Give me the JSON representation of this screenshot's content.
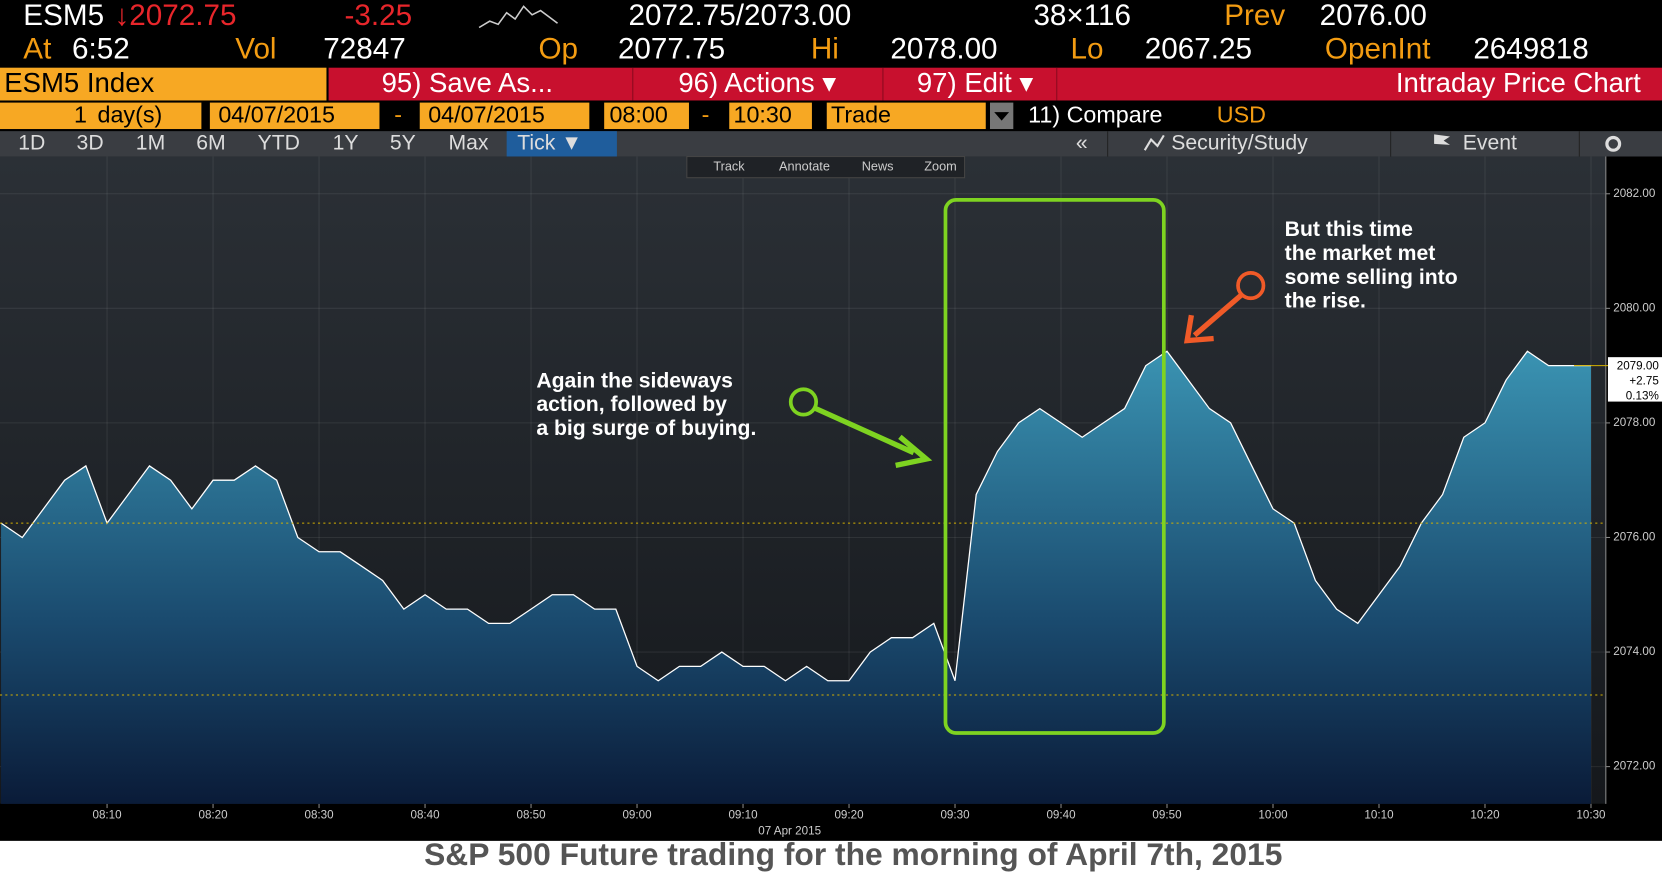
{
  "header": {
    "ticker": "ESM5",
    "last": "↓2072.75",
    "change": "-3.25",
    "bid_ask": "2072.75/2073.00",
    "size": "38×116",
    "prev_label": "Prev",
    "prev": "2076.00",
    "at_label": "At",
    "time": "6:52",
    "vol_label": "Vol",
    "vol": "72847",
    "op_label": "Op",
    "op": "2077.75",
    "hi_label": "Hi",
    "hi": "2078.00",
    "lo_label": "Lo",
    "lo": "2067.25",
    "oi_label": "OpenInt",
    "oi": "2649818"
  },
  "menu": {
    "security": "ESM5 Index",
    "save": "95) Save As...",
    "actions": "96) Actions ▾",
    "edit": "97) Edit ▾",
    "title": "Intraday Price Chart"
  },
  "range": {
    "count": "1",
    "unit": "day(s)",
    "start_date": "04/07/2015",
    "dash1": "-",
    "end_date": "04/07/2015",
    "start_time": "08:00",
    "dash2": "-",
    "end_time": "10:30",
    "source": "Trade",
    "compare": "11) Compare",
    "currency": "USD"
  },
  "tabs": [
    "1D",
    "3D",
    "1M",
    "6M",
    "YTD",
    "1Y",
    "5Y",
    "Max",
    "Tick ▼"
  ],
  "tools": [
    "«",
    "Security/Study",
    "Event"
  ],
  "chart_toolbar": [
    "Track",
    "Annotate",
    "News",
    "Zoom"
  ],
  "chart_data": {
    "type": "area",
    "color": "#2e7d9c",
    "line_color": "#ffffff",
    "x": [
      "08:00",
      "08:02",
      "08:04",
      "08:06",
      "08:08",
      "08:10",
      "08:12",
      "08:14",
      "08:16",
      "08:18",
      "08:20",
      "08:22",
      "08:24",
      "08:26",
      "08:28",
      "08:30",
      "08:32",
      "08:34",
      "08:36",
      "08:38",
      "08:40",
      "08:42",
      "08:44",
      "08:46",
      "08:48",
      "08:50",
      "08:52",
      "08:54",
      "08:56",
      "08:58",
      "09:00",
      "09:02",
      "09:04",
      "09:06",
      "09:08",
      "09:10",
      "09:12",
      "09:14",
      "09:16",
      "09:18",
      "09:20",
      "09:22",
      "09:24",
      "09:26",
      "09:28",
      "09:30",
      "09:32",
      "09:34",
      "09:36",
      "09:38",
      "09:40",
      "09:42",
      "09:44",
      "09:46",
      "09:48",
      "09:50",
      "09:52",
      "09:54",
      "09:56",
      "09:58",
      "10:00",
      "10:02",
      "10:04",
      "10:06",
      "10:08",
      "10:10",
      "10:12",
      "10:14",
      "10:16",
      "10:18",
      "10:20",
      "10:22",
      "10:24",
      "10:26",
      "10:28",
      "10:30"
    ],
    "values": [
      2076.25,
      2076,
      2076.5,
      2077,
      2077.25,
      2076.25,
      2076.75,
      2077.25,
      2077,
      2076.5,
      2077,
      2077,
      2077.25,
      2077,
      2076,
      2075.75,
      2075.75,
      2075.5,
      2075.25,
      2074.75,
      2075,
      2074.75,
      2074.75,
      2074.5,
      2074.5,
      2074.75,
      2075,
      2075,
      2074.75,
      2074.75,
      2073.75,
      2073.5,
      2073.75,
      2073.75,
      2074,
      2073.75,
      2073.75,
      2073.5,
      2073.75,
      2073.5,
      2073.5,
      2074,
      2074.25,
      2074.25,
      2074.5,
      2073.5,
      2076.75,
      2077.5,
      2078,
      2078.25,
      2078,
      2077.75,
      2078,
      2078.25,
      2079,
      2079.25,
      2078.75,
      2078.25,
      2078,
      2077.25,
      2076.5,
      2076.25,
      2075.25,
      2074.75,
      2074.5,
      2075,
      2075.5,
      2076.25,
      2076.75,
      2077.75,
      2078,
      2078.75,
      2079.25,
      2079,
      2079,
      2079
    ],
    "xlim": [
      "08:00",
      "10:31"
    ],
    "ylim": [
      2071.35,
      2082.65
    ],
    "xticks": [
      "08:10",
      "08:20",
      "08:30",
      "08:40",
      "08:50",
      "09:00",
      "09:10",
      "09:20",
      "09:30",
      "09:40",
      "09:50",
      "10:00",
      "10:10",
      "10:20",
      "10:30"
    ],
    "yticks": [
      {
        "value": 2072,
        "label": "2072.00"
      },
      {
        "value": 2074,
        "label": "2074.00"
      },
      {
        "value": 2076,
        "label": "2076.00"
      },
      {
        "value": 2078,
        "label": "2078.00"
      },
      {
        "value": 2080,
        "label": "2080.00"
      },
      {
        "value": 2082,
        "label": "2082.00"
      }
    ],
    "x_date_label": "07 Apr 2015",
    "grid": true,
    "ref_lines": [
      2076.25,
      2073.25
    ],
    "ref_color": "#d4b000",
    "last_label": {
      "value": 2079,
      "lines": [
        "2079.00",
        "+2.75",
        "0.13%"
      ]
    },
    "annotations": [
      {
        "color": "#7ed321",
        "lines": [
          "Again the sideways",
          "action,  followed by",
          "a big surge of buying."
        ]
      },
      {
        "color": "#f05a28",
        "lines": [
          "But this time",
          "the market met",
          "some selling into",
          "the rise."
        ]
      }
    ]
  },
  "caption": "S&P 500 Future trading for the morning of April 7th, 2015"
}
